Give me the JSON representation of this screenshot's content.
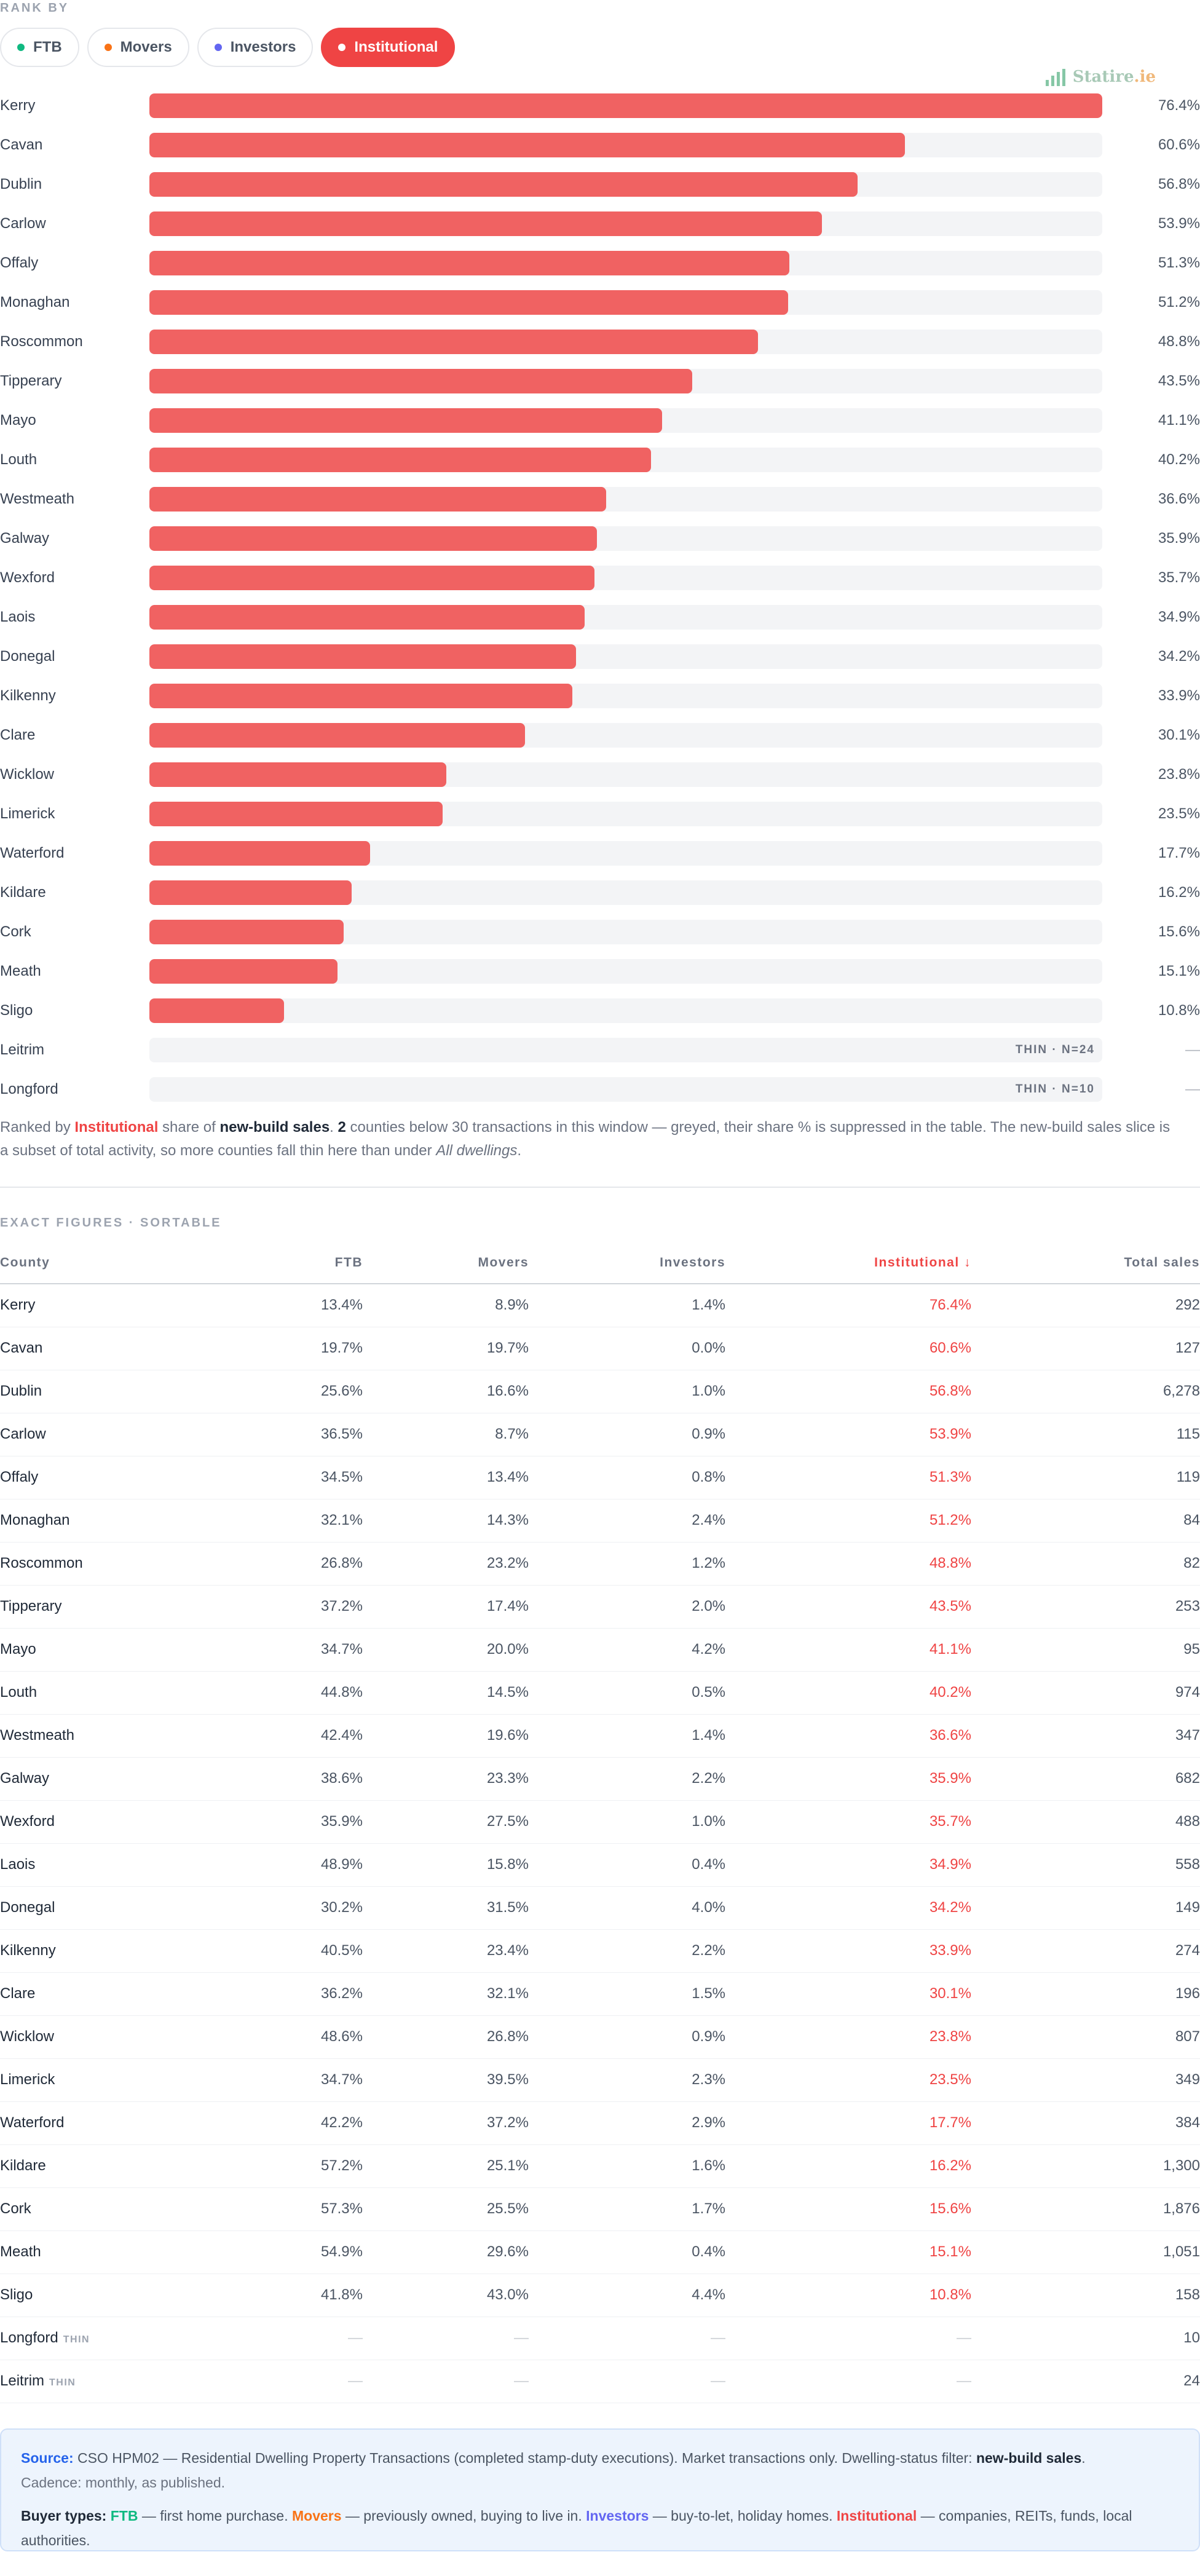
{
  "rank_by": {
    "label": "RANK BY",
    "options": [
      {
        "label": "FTB",
        "color": "#10b981",
        "active": false
      },
      {
        "label": "Movers",
        "color": "#f97316",
        "active": false
      },
      {
        "label": "Investors",
        "color": "#6366f1",
        "active": false
      },
      {
        "label": "Institutional",
        "color": "#ef4444",
        "active": true
      }
    ]
  },
  "logo": {
    "name": "Statire",
    "suffix": ".ie"
  },
  "chart_data": {
    "type": "bar",
    "orientation": "horizontal",
    "categories": [
      "Kerry",
      "Cavan",
      "Dublin",
      "Carlow",
      "Offaly",
      "Monaghan",
      "Roscommon",
      "Tipperary",
      "Mayo",
      "Louth",
      "Westmeath",
      "Galway",
      "Wexford",
      "Laois",
      "Donegal",
      "Kilkenny",
      "Clare",
      "Wicklow",
      "Limerick",
      "Waterford",
      "Kildare",
      "Cork",
      "Meath",
      "Sligo",
      "Leitrim",
      "Longford"
    ],
    "values": [
      76.4,
      60.6,
      56.8,
      53.9,
      51.3,
      51.2,
      48.8,
      43.5,
      41.1,
      40.2,
      36.6,
      35.9,
      35.7,
      34.9,
      34.2,
      33.9,
      30.1,
      23.8,
      23.5,
      17.7,
      16.2,
      15.6,
      15.1,
      10.8,
      null,
      null
    ],
    "value_labels": [
      "76.4%",
      "60.6%",
      "56.8%",
      "53.9%",
      "51.3%",
      "51.2%",
      "48.8%",
      "43.5%",
      "41.1%",
      "40.2%",
      "36.6%",
      "35.9%",
      "35.7%",
      "34.9%",
      "34.2%",
      "33.9%",
      "30.1%",
      "23.8%",
      "23.5%",
      "17.7%",
      "16.2%",
      "15.6%",
      "15.1%",
      "10.8%",
      "—",
      "—"
    ],
    "thin_tags": {
      "Leitrim": "THIN · N=24",
      "Longford": "THIN · N=10"
    },
    "xlim": [
      0,
      76.4
    ],
    "color": "#f06262",
    "track_color": "#f3f4f6",
    "grid": false
  },
  "chart_note": {
    "p1": "Ranked by ",
    "inst": "Institutional",
    "p2": " share of ",
    "nb": "new-build sales",
    "p3": ". ",
    "count": "2",
    "p4": " counties below 30 transactions in this window — greyed, their share % is suppressed in the table. The new-build sales slice is a subset of total activity, so more counties fall thin here than under ",
    "all": "All dwellings",
    "p5": "."
  },
  "table": {
    "title": "EXACT FIGURES · SORTABLE",
    "headers": {
      "county": "County",
      "ftb": "FTB",
      "movers": "Movers",
      "investors": "Investors",
      "institutional": "Institutional ↓",
      "total": "Total sales"
    },
    "thin_label": "THIN",
    "rows": [
      [
        "Kerry",
        "13.4%",
        "8.9%",
        "1.4%",
        "76.4%",
        "292"
      ],
      [
        "Cavan",
        "19.7%",
        "19.7%",
        "0.0%",
        "60.6%",
        "127"
      ],
      [
        "Dublin",
        "25.6%",
        "16.6%",
        "1.0%",
        "56.8%",
        "6,278"
      ],
      [
        "Carlow",
        "36.5%",
        "8.7%",
        "0.9%",
        "53.9%",
        "115"
      ],
      [
        "Offaly",
        "34.5%",
        "13.4%",
        "0.8%",
        "51.3%",
        "119"
      ],
      [
        "Monaghan",
        "32.1%",
        "14.3%",
        "2.4%",
        "51.2%",
        "84"
      ],
      [
        "Roscommon",
        "26.8%",
        "23.2%",
        "1.2%",
        "48.8%",
        "82"
      ],
      [
        "Tipperary",
        "37.2%",
        "17.4%",
        "2.0%",
        "43.5%",
        "253"
      ],
      [
        "Mayo",
        "34.7%",
        "20.0%",
        "4.2%",
        "41.1%",
        "95"
      ],
      [
        "Louth",
        "44.8%",
        "14.5%",
        "0.5%",
        "40.2%",
        "974"
      ],
      [
        "Westmeath",
        "42.4%",
        "19.6%",
        "1.4%",
        "36.6%",
        "347"
      ],
      [
        "Galway",
        "38.6%",
        "23.3%",
        "2.2%",
        "35.9%",
        "682"
      ],
      [
        "Wexford",
        "35.9%",
        "27.5%",
        "1.0%",
        "35.7%",
        "488"
      ],
      [
        "Laois",
        "48.9%",
        "15.8%",
        "0.4%",
        "34.9%",
        "558"
      ],
      [
        "Donegal",
        "30.2%",
        "31.5%",
        "4.0%",
        "34.2%",
        "149"
      ],
      [
        "Kilkenny",
        "40.5%",
        "23.4%",
        "2.2%",
        "33.9%",
        "274"
      ],
      [
        "Clare",
        "36.2%",
        "32.1%",
        "1.5%",
        "30.1%",
        "196"
      ],
      [
        "Wicklow",
        "48.6%",
        "26.8%",
        "0.9%",
        "23.8%",
        "807"
      ],
      [
        "Limerick",
        "34.7%",
        "39.5%",
        "2.3%",
        "23.5%",
        "349"
      ],
      [
        "Waterford",
        "42.2%",
        "37.2%",
        "2.9%",
        "17.7%",
        "384"
      ],
      [
        "Kildare",
        "57.2%",
        "25.1%",
        "1.6%",
        "16.2%",
        "1,300"
      ],
      [
        "Cork",
        "57.3%",
        "25.5%",
        "1.7%",
        "15.6%",
        "1,876"
      ],
      [
        "Meath",
        "54.9%",
        "29.6%",
        "0.4%",
        "15.1%",
        "1,051"
      ],
      [
        "Sligo",
        "41.8%",
        "43.0%",
        "4.4%",
        "10.8%",
        "158"
      ]
    ],
    "thin_rows": [
      [
        "Longford",
        "—",
        "—",
        "—",
        "—",
        "10"
      ],
      [
        "Leitrim",
        "—",
        "—",
        "—",
        "—",
        "24"
      ]
    ]
  },
  "source": {
    "label": "Source:",
    "text": " CSO HPM02 — Residential Dwelling Property Transactions (completed stamp-duty executions). Market transactions only. Dwelling-status filter: ",
    "filter": "new-build sales",
    "end": ".",
    "cadence": "Cadence: monthly, as published.",
    "buyer_label": "Buyer types:",
    "ftb": "FTB",
    "ftb_desc": " — first home purchase. ",
    "movers": "Movers",
    "movers_desc": " — previously owned, buying to live in. ",
    "investors": "Investors",
    "investors_desc": " — buy-to-let, holiday homes. ",
    "institutional": "Institutional",
    "institutional_desc": " — companies, REITs, funds, local authorities."
  }
}
